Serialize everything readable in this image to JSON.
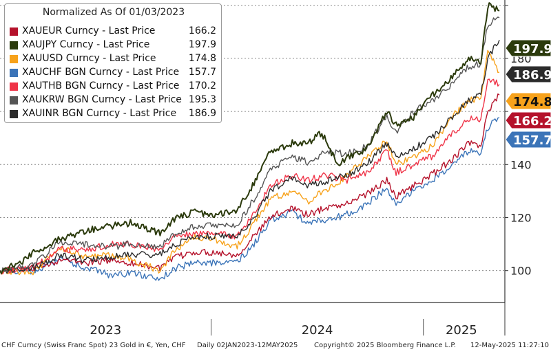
{
  "chart_data": {
    "type": "line",
    "title": "Normalized As Of 01/03/2023",
    "x_range": [
      "2023-01-02",
      "2025-05-12"
    ],
    "x_tick_labels": [
      "2023",
      "2024",
      "2025"
    ],
    "ylim": [
      88,
      202
    ],
    "y_ticks": [
      100,
      120,
      140,
      160,
      180,
      200
    ],
    "y_tick_labels": [
      "100",
      "120",
      "140",
      "",
      "180",
      ""
    ],
    "grid": true,
    "legend_position": "top-left",
    "series": [
      {
        "name": "XAUEUR Curncy - Last Price",
        "last": 166.2,
        "last_label": "166.2",
        "color": "#b5122b",
        "points": [
          [
            "2023-01-02",
            100
          ],
          [
            "2023-03-01",
            101
          ],
          [
            "2023-04-15",
            104
          ],
          [
            "2023-06-01",
            103
          ],
          [
            "2023-07-15",
            104
          ],
          [
            "2023-08-15",
            103
          ],
          [
            "2023-10-05",
            101
          ],
          [
            "2023-11-01",
            105
          ],
          [
            "2023-12-04",
            107
          ],
          [
            "2024-01-02",
            107
          ],
          [
            "2024-02-15",
            106
          ],
          [
            "2024-03-15",
            113
          ],
          [
            "2024-04-12",
            120
          ],
          [
            "2024-05-20",
            124
          ],
          [
            "2024-06-15",
            121
          ],
          [
            "2024-07-20",
            124
          ],
          [
            "2024-08-20",
            125
          ],
          [
            "2024-09-25",
            129
          ],
          [
            "2024-10-30",
            134
          ],
          [
            "2024-11-15",
            128
          ],
          [
            "2024-12-15",
            132
          ],
          [
            "2025-01-15",
            136
          ],
          [
            "2025-02-20",
            142
          ],
          [
            "2025-03-20",
            148
          ],
          [
            "2025-04-10",
            147
          ],
          [
            "2025-04-22",
            160
          ],
          [
            "2025-05-12",
            166.2
          ]
        ]
      },
      {
        "name": "XAUJPY Curncy - Last Price",
        "last": 197.9,
        "last_label": "197.9",
        "color": "#2b3a0c",
        "points": [
          [
            "2023-01-02",
            100
          ],
          [
            "2023-02-10",
            103
          ],
          [
            "2023-03-01",
            107
          ],
          [
            "2023-04-15",
            112
          ],
          [
            "2023-06-01",
            115
          ],
          [
            "2023-07-15",
            117
          ],
          [
            "2023-08-15",
            118
          ],
          [
            "2023-10-05",
            114
          ],
          [
            "2023-11-01",
            120
          ],
          [
            "2023-12-04",
            122
          ],
          [
            "2024-01-02",
            121
          ],
          [
            "2024-02-15",
            123
          ],
          [
            "2024-03-15",
            133
          ],
          [
            "2024-04-12",
            145
          ],
          [
            "2024-05-20",
            148
          ],
          [
            "2024-06-15",
            148
          ],
          [
            "2024-07-10",
            152
          ],
          [
            "2024-08-05",
            140
          ],
          [
            "2024-08-20",
            142
          ],
          [
            "2024-09-25",
            146
          ],
          [
            "2024-10-30",
            160
          ],
          [
            "2024-11-15",
            155
          ],
          [
            "2024-12-15",
            158
          ],
          [
            "2025-01-15",
            166
          ],
          [
            "2025-02-20",
            173
          ],
          [
            "2025-03-20",
            180
          ],
          [
            "2025-04-10",
            178
          ],
          [
            "2025-04-22",
            200
          ],
          [
            "2025-05-12",
            197.9
          ]
        ]
      },
      {
        "name": "XAUUSD Curncy - Last Price",
        "last": 174.8,
        "last_label": "174.8",
        "color": "#f7a21b",
        "points": [
          [
            "2023-01-02",
            100
          ],
          [
            "2023-02-28",
            99
          ],
          [
            "2023-04-15",
            109
          ],
          [
            "2023-06-01",
            105
          ],
          [
            "2023-07-15",
            106
          ],
          [
            "2023-08-15",
            104
          ],
          [
            "2023-10-05",
            100
          ],
          [
            "2023-11-01",
            108
          ],
          [
            "2023-12-04",
            113
          ],
          [
            "2024-01-02",
            112
          ],
          [
            "2024-02-15",
            109
          ],
          [
            "2024-03-15",
            118
          ],
          [
            "2024-04-12",
            127
          ],
          [
            "2024-05-20",
            130
          ],
          [
            "2024-06-15",
            126
          ],
          [
            "2024-07-20",
            131
          ],
          [
            "2024-08-20",
            135
          ],
          [
            "2024-09-25",
            143
          ],
          [
            "2024-10-30",
            149
          ],
          [
            "2024-11-15",
            140
          ],
          [
            "2024-12-15",
            143
          ],
          [
            "2025-01-15",
            147
          ],
          [
            "2025-02-20",
            158
          ],
          [
            "2025-03-20",
            164
          ],
          [
            "2025-04-10",
            165
          ],
          [
            "2025-04-22",
            183
          ],
          [
            "2025-05-12",
            174.8
          ]
        ]
      },
      {
        "name": "XAUCHF BGN Curncy - Last Price",
        "last": 157.7,
        "last_label": "157.7",
        "color": "#3b74b8",
        "points": [
          [
            "2023-01-02",
            100
          ],
          [
            "2023-03-01",
            100
          ],
          [
            "2023-04-15",
            104
          ],
          [
            "2023-06-01",
            101
          ],
          [
            "2023-07-15",
            98
          ],
          [
            "2023-08-15",
            99
          ],
          [
            "2023-10-05",
            97
          ],
          [
            "2023-11-01",
            101
          ],
          [
            "2023-12-04",
            103
          ],
          [
            "2024-01-02",
            103
          ],
          [
            "2024-02-15",
            103
          ],
          [
            "2024-03-15",
            110
          ],
          [
            "2024-04-12",
            119
          ],
          [
            "2024-05-20",
            122
          ],
          [
            "2024-06-15",
            118
          ],
          [
            "2024-07-20",
            119
          ],
          [
            "2024-08-20",
            121
          ],
          [
            "2024-09-25",
            125
          ],
          [
            "2024-10-30",
            131
          ],
          [
            "2024-11-15",
            125
          ],
          [
            "2024-12-15",
            130
          ],
          [
            "2025-01-15",
            134
          ],
          [
            "2025-02-20",
            140
          ],
          [
            "2025-03-20",
            145
          ],
          [
            "2025-04-10",
            144
          ],
          [
            "2025-04-22",
            154
          ],
          [
            "2025-05-12",
            157.7
          ]
        ]
      },
      {
        "name": "XAUTHB BGN Curncy - Last Price",
        "last": 170.2,
        "last_label": "170.2",
        "color": "#ef3347",
        "points": [
          [
            "2023-01-02",
            100
          ],
          [
            "2023-03-01",
            101
          ],
          [
            "2023-04-15",
            108
          ],
          [
            "2023-06-01",
            108
          ],
          [
            "2023-07-15",
            110
          ],
          [
            "2023-08-15",
            110
          ],
          [
            "2023-10-05",
            108
          ],
          [
            "2023-11-01",
            113
          ],
          [
            "2023-12-04",
            114
          ],
          [
            "2024-01-02",
            114
          ],
          [
            "2024-02-15",
            113
          ],
          [
            "2024-03-15",
            122
          ],
          [
            "2024-04-12",
            132
          ],
          [
            "2024-05-20",
            136
          ],
          [
            "2024-06-15",
            134
          ],
          [
            "2024-07-20",
            136
          ],
          [
            "2024-08-20",
            134
          ],
          [
            "2024-09-25",
            137
          ],
          [
            "2024-10-30",
            145
          ],
          [
            "2024-11-15",
            137
          ],
          [
            "2024-12-15",
            140
          ],
          [
            "2025-01-15",
            143
          ],
          [
            "2025-02-20",
            152
          ],
          [
            "2025-03-20",
            157
          ],
          [
            "2025-04-10",
            157
          ],
          [
            "2025-04-22",
            172
          ],
          [
            "2025-05-12",
            170.2
          ]
        ]
      },
      {
        "name": "XAUKRW BGN Curncy - Last Price",
        "last": 195.3,
        "last_label": "195.3",
        "color": "#555555",
        "points": [
          [
            "2023-01-02",
            100
          ],
          [
            "2023-03-01",
            102
          ],
          [
            "2023-04-15",
            111
          ],
          [
            "2023-06-01",
            110
          ],
          [
            "2023-07-15",
            109
          ],
          [
            "2023-08-15",
            110
          ],
          [
            "2023-10-05",
            109
          ],
          [
            "2023-11-01",
            114
          ],
          [
            "2023-12-04",
            117
          ],
          [
            "2024-01-02",
            117
          ],
          [
            "2024-02-15",
            117
          ],
          [
            "2024-03-15",
            127
          ],
          [
            "2024-04-12",
            138
          ],
          [
            "2024-05-20",
            143
          ],
          [
            "2024-06-15",
            141
          ],
          [
            "2024-07-20",
            145
          ],
          [
            "2024-08-20",
            144
          ],
          [
            "2024-09-25",
            147
          ],
          [
            "2024-10-30",
            158
          ],
          [
            "2024-11-15",
            152
          ],
          [
            "2024-12-15",
            160
          ],
          [
            "2025-01-15",
            164
          ],
          [
            "2025-02-20",
            170
          ],
          [
            "2025-03-20",
            177
          ],
          [
            "2025-04-10",
            178
          ],
          [
            "2025-04-22",
            193
          ],
          [
            "2025-05-12",
            195.3
          ]
        ]
      },
      {
        "name": "XAUINR BGN Curncy - Last Price",
        "last": 186.9,
        "last_label": "186.9",
        "color": "#2b2b2b",
        "points": [
          [
            "2023-01-02",
            100
          ],
          [
            "2023-03-01",
            101
          ],
          [
            "2023-04-15",
            106
          ],
          [
            "2023-06-01",
            104
          ],
          [
            "2023-07-15",
            105
          ],
          [
            "2023-08-15",
            106
          ],
          [
            "2023-10-05",
            106
          ],
          [
            "2023-11-01",
            110
          ],
          [
            "2023-12-04",
            113
          ],
          [
            "2024-01-02",
            113
          ],
          [
            "2024-02-15",
            113
          ],
          [
            "2024-03-15",
            120
          ],
          [
            "2024-04-12",
            130
          ],
          [
            "2024-05-20",
            135
          ],
          [
            "2024-06-15",
            132
          ],
          [
            "2024-07-20",
            134
          ],
          [
            "2024-08-20",
            136
          ],
          [
            "2024-09-25",
            140
          ],
          [
            "2024-10-30",
            148
          ],
          [
            "2024-11-15",
            143
          ],
          [
            "2024-12-15",
            146
          ],
          [
            "2025-01-15",
            150
          ],
          [
            "2025-02-20",
            158
          ],
          [
            "2025-03-20",
            164
          ],
          [
            "2025-04-10",
            166
          ],
          [
            "2025-04-22",
            180
          ],
          [
            "2025-05-12",
            186.9
          ]
        ]
      }
    ]
  },
  "footer": {
    "left": "CHF Curncy (Swiss Franc Spot) 23 Gold in €, Yen, CHF",
    "middle": "Daily 02JAN2023-12MAY2025",
    "copyright": "Copyright© 2025 Bloomberg Finance L.P.",
    "timestamp": "12-May-2025 11:27:10"
  }
}
